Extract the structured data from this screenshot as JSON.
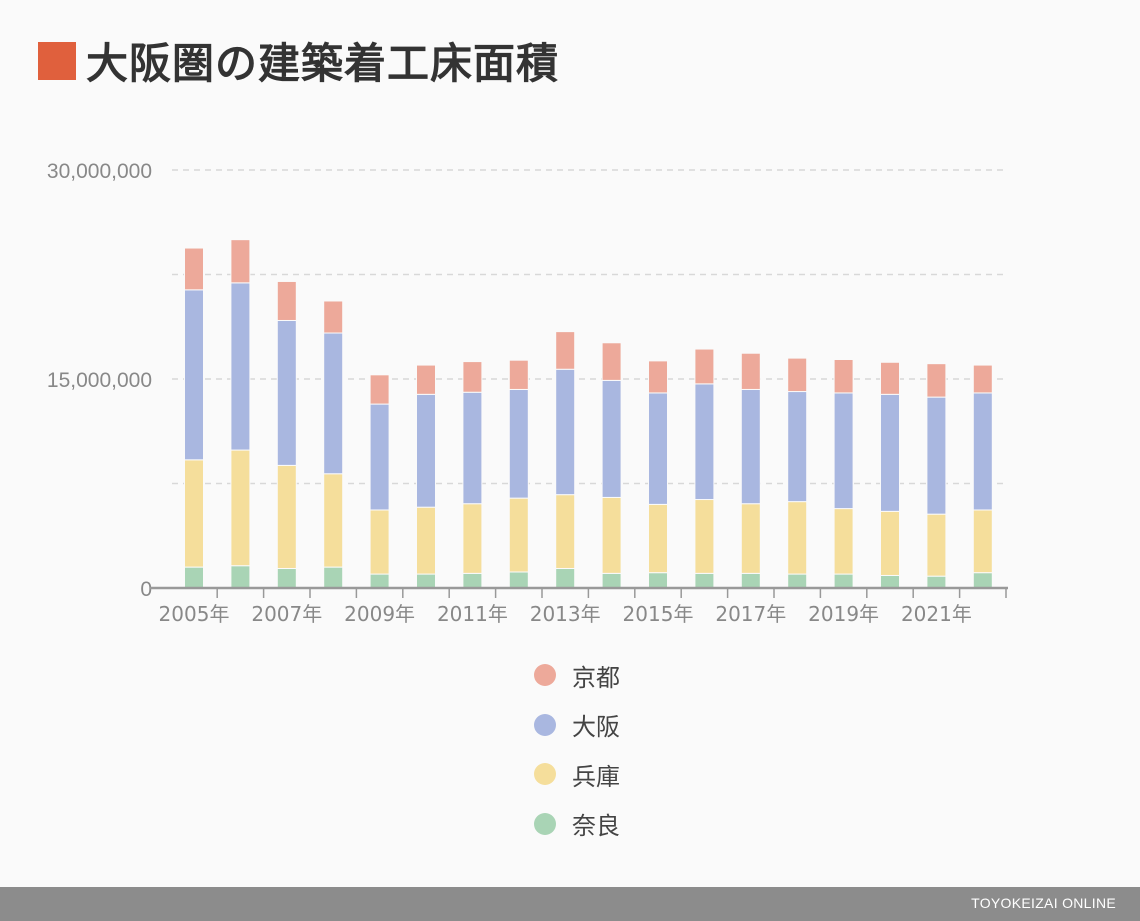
{
  "title": "大阪圏の建築着工床面積",
  "colors": {
    "title_square": "#e0603d",
    "kyoto": "#eda99a",
    "osaka": "#a9b7e0",
    "hyogo": "#f5de9b",
    "nara": "#a9d4b5",
    "grid": "#d8d8d8",
    "axis": "#999999",
    "tick_text": "#888888"
  },
  "legend": {
    "items": [
      {
        "label": "京都",
        "color": "#eda99a"
      },
      {
        "label": "大阪",
        "color": "#a9b7e0"
      },
      {
        "label": "兵庫",
        "color": "#f5de9b"
      },
      {
        "label": "奈良",
        "color": "#a9d4b5"
      }
    ]
  },
  "footer": {
    "brand": "TOYOKEIZAI ONLINE"
  },
  "chart_data": {
    "type": "bar",
    "stacked": true,
    "categories": [
      "2005年",
      "2006年",
      "2007年",
      "2008年",
      "2009年",
      "2010年",
      "2011年",
      "2012年",
      "2013年",
      "2014年",
      "2015年",
      "2016年",
      "2017年",
      "2018年",
      "2019年",
      "2020年",
      "2021年",
      "2022年"
    ],
    "x_tick_labels": [
      "2005年",
      "2007年",
      "2009年",
      "2011年",
      "2013年",
      "2015年",
      "2017年",
      "2019年",
      "2021年"
    ],
    "y_tick_labels": [
      "0",
      "15,000,000",
      "30,000,000"
    ],
    "ylim": [
      0,
      30000000
    ],
    "y_gridlines": [
      7500000,
      15000000,
      22500000,
      30000000
    ],
    "grid": true,
    "legend_position": "bottom",
    "series": [
      {
        "name": "奈良",
        "color": "#a9d4b5",
        "values": [
          1500000,
          1600000,
          1400000,
          1500000,
          1000000,
          1000000,
          1050000,
          1150000,
          1400000,
          1050000,
          1100000,
          1050000,
          1050000,
          1000000,
          1000000,
          900000,
          850000,
          1100000
        ]
      },
      {
        "name": "兵庫",
        "color": "#f5de9b",
        "values": [
          7700000,
          8300000,
          7400000,
          6700000,
          4600000,
          4800000,
          5000000,
          5300000,
          5300000,
          5450000,
          4900000,
          5300000,
          5000000,
          5200000,
          4700000,
          4600000,
          4450000,
          4500000
        ]
      },
      {
        "name": "大阪",
        "color": "#a9b7e0",
        "values": [
          12200000,
          12000000,
          10400000,
          10100000,
          7600000,
          8100000,
          8000000,
          7800000,
          9000000,
          8400000,
          8000000,
          8300000,
          8200000,
          7900000,
          8300000,
          8400000,
          8400000,
          8400000
        ]
      },
      {
        "name": "京都",
        "color": "#eda99a",
        "values": [
          3000000,
          3100000,
          2800000,
          2300000,
          2100000,
          2100000,
          2200000,
          2100000,
          2700000,
          2700000,
          2300000,
          2500000,
          2600000,
          2400000,
          2400000,
          2300000,
          2400000,
          2000000
        ]
      }
    ]
  }
}
